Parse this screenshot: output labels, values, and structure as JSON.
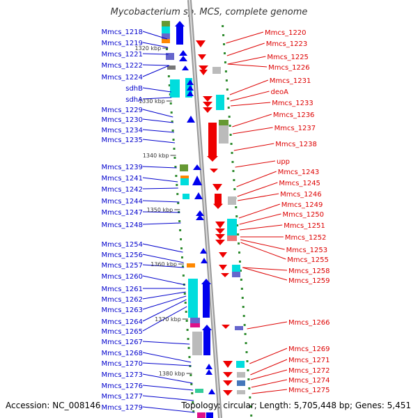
{
  "title": "Mycobacterium sp. MCS, complete genome",
  "footer": {
    "accession": "Accession: NC_008146",
    "topology": "Topology: circular; Length: 5,705,448 bp; Genes: 5,451"
  },
  "colors": {
    "left_strand_label": "#0000cc",
    "right_strand_label": "#dd0000",
    "backbone": "#999999",
    "dots": "#2e8b2e",
    "forward_arrow": "#0000ee",
    "reverse_arrow": "#ee0000",
    "cyan": "#00dddd",
    "gray": "#bbbbbb",
    "green": "#669933",
    "orange": "#ff8800",
    "purple": "#6666cc",
    "magenta": "#dd1188"
  },
  "kbp_ticks": [
    "1320 kbp",
    "1330 kbp",
    "1340 kbp",
    "1350 kbp",
    "1360 kbp",
    "1370 kbp",
    "1380 kbp"
  ],
  "left_genes": [
    "Mmcs_1218",
    "Mmcs_1219",
    "Mmcs_1221",
    "Mmcs_1222",
    "Mmcs_1224",
    "sdhB",
    "sdhA",
    "Mmcs_1229",
    "Mmcs_1230",
    "Mmcs_1234",
    "Mmcs_1235",
    "Mmcs_1239",
    "Mmcs_1241",
    "Mmcs_1242",
    "Mmcs_1244",
    "Mmcs_1247",
    "Mmcs_1248",
    "Mmcs_1254",
    "Mmcs_1256",
    "Mmcs_1257",
    "Mmcs_1260",
    "Mmcs_1261",
    "Mmcs_1262",
    "Mmcs_1263",
    "Mmcs_1264",
    "Mmcs_1265",
    "Mmcs_1267",
    "Mmcs_1268",
    "Mmcs_1270",
    "Mmcs_1273",
    "Mmcs_1276",
    "Mmcs_1277",
    "Mmcs_1279"
  ],
  "right_genes": [
    "Mmcs_1220",
    "Mmcs_1223",
    "Mmcs_1225",
    "Mmcs_1226",
    "Mmcs_1231",
    "deoA",
    "Mmcs_1233",
    "Mmcs_1236",
    "Mmcs_1237",
    "Mmcs_1238",
    "upp",
    "Mmcs_1243",
    "Mmcs_1245",
    "Mmcs_1246",
    "Mmcs_1249",
    "Mmcs_1250",
    "Mmcs_1251",
    "Mmcs_1252",
    "Mmcs_1253",
    "Mmcs_1255",
    "Mmcs_1258",
    "Mmcs_1259",
    "Mmcs_1266",
    "Mmcs_1269",
    "Mmcs_1271",
    "Mmcs_1272",
    "Mmcs_1274",
    "Mmcs_1275"
  ]
}
